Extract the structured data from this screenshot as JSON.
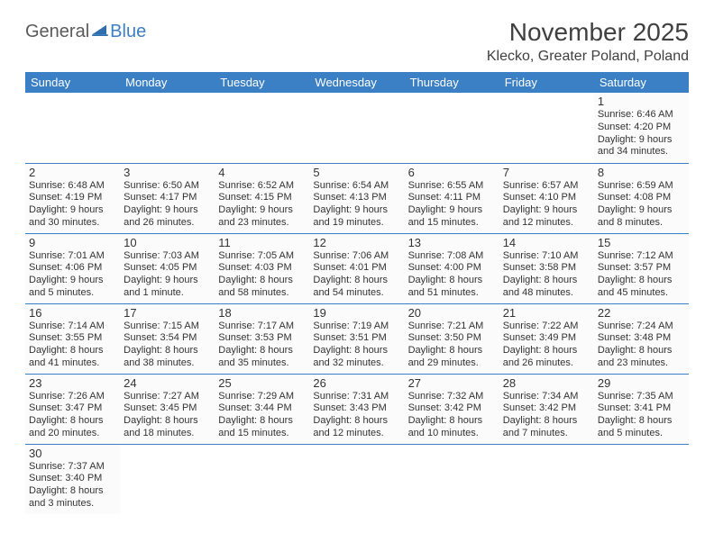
{
  "logo": {
    "part1": "General",
    "part2": "Blue"
  },
  "title": "November 2025",
  "location": "Klecko, Greater Poland, Poland",
  "colors": {
    "header_bg": "#3b7fc4",
    "header_text": "#ffffff",
    "border": "#3b7fc4",
    "cell_bg": "#fbfbfb",
    "text": "#333333",
    "logo_gray": "#5a5a5a",
    "logo_blue": "#3b7fc4"
  },
  "weekdays": [
    "Sunday",
    "Monday",
    "Tuesday",
    "Wednesday",
    "Thursday",
    "Friday",
    "Saturday"
  ],
  "weeks": [
    [
      null,
      null,
      null,
      null,
      null,
      null,
      {
        "day": "1",
        "sunrise": "Sunrise: 6:46 AM",
        "sunset": "Sunset: 4:20 PM",
        "daylight1": "Daylight: 9 hours",
        "daylight2": "and 34 minutes."
      }
    ],
    [
      {
        "day": "2",
        "sunrise": "Sunrise: 6:48 AM",
        "sunset": "Sunset: 4:19 PM",
        "daylight1": "Daylight: 9 hours",
        "daylight2": "and 30 minutes."
      },
      {
        "day": "3",
        "sunrise": "Sunrise: 6:50 AM",
        "sunset": "Sunset: 4:17 PM",
        "daylight1": "Daylight: 9 hours",
        "daylight2": "and 26 minutes."
      },
      {
        "day": "4",
        "sunrise": "Sunrise: 6:52 AM",
        "sunset": "Sunset: 4:15 PM",
        "daylight1": "Daylight: 9 hours",
        "daylight2": "and 23 minutes."
      },
      {
        "day": "5",
        "sunrise": "Sunrise: 6:54 AM",
        "sunset": "Sunset: 4:13 PM",
        "daylight1": "Daylight: 9 hours",
        "daylight2": "and 19 minutes."
      },
      {
        "day": "6",
        "sunrise": "Sunrise: 6:55 AM",
        "sunset": "Sunset: 4:11 PM",
        "daylight1": "Daylight: 9 hours",
        "daylight2": "and 15 minutes."
      },
      {
        "day": "7",
        "sunrise": "Sunrise: 6:57 AM",
        "sunset": "Sunset: 4:10 PM",
        "daylight1": "Daylight: 9 hours",
        "daylight2": "and 12 minutes."
      },
      {
        "day": "8",
        "sunrise": "Sunrise: 6:59 AM",
        "sunset": "Sunset: 4:08 PM",
        "daylight1": "Daylight: 9 hours",
        "daylight2": "and 8 minutes."
      }
    ],
    [
      {
        "day": "9",
        "sunrise": "Sunrise: 7:01 AM",
        "sunset": "Sunset: 4:06 PM",
        "daylight1": "Daylight: 9 hours",
        "daylight2": "and 5 minutes."
      },
      {
        "day": "10",
        "sunrise": "Sunrise: 7:03 AM",
        "sunset": "Sunset: 4:05 PM",
        "daylight1": "Daylight: 9 hours",
        "daylight2": "and 1 minute."
      },
      {
        "day": "11",
        "sunrise": "Sunrise: 7:05 AM",
        "sunset": "Sunset: 4:03 PM",
        "daylight1": "Daylight: 8 hours",
        "daylight2": "and 58 minutes."
      },
      {
        "day": "12",
        "sunrise": "Sunrise: 7:06 AM",
        "sunset": "Sunset: 4:01 PM",
        "daylight1": "Daylight: 8 hours",
        "daylight2": "and 54 minutes."
      },
      {
        "day": "13",
        "sunrise": "Sunrise: 7:08 AM",
        "sunset": "Sunset: 4:00 PM",
        "daylight1": "Daylight: 8 hours",
        "daylight2": "and 51 minutes."
      },
      {
        "day": "14",
        "sunrise": "Sunrise: 7:10 AM",
        "sunset": "Sunset: 3:58 PM",
        "daylight1": "Daylight: 8 hours",
        "daylight2": "and 48 minutes."
      },
      {
        "day": "15",
        "sunrise": "Sunrise: 7:12 AM",
        "sunset": "Sunset: 3:57 PM",
        "daylight1": "Daylight: 8 hours",
        "daylight2": "and 45 minutes."
      }
    ],
    [
      {
        "day": "16",
        "sunrise": "Sunrise: 7:14 AM",
        "sunset": "Sunset: 3:55 PM",
        "daylight1": "Daylight: 8 hours",
        "daylight2": "and 41 minutes."
      },
      {
        "day": "17",
        "sunrise": "Sunrise: 7:15 AM",
        "sunset": "Sunset: 3:54 PM",
        "daylight1": "Daylight: 8 hours",
        "daylight2": "and 38 minutes."
      },
      {
        "day": "18",
        "sunrise": "Sunrise: 7:17 AM",
        "sunset": "Sunset: 3:53 PM",
        "daylight1": "Daylight: 8 hours",
        "daylight2": "and 35 minutes."
      },
      {
        "day": "19",
        "sunrise": "Sunrise: 7:19 AM",
        "sunset": "Sunset: 3:51 PM",
        "daylight1": "Daylight: 8 hours",
        "daylight2": "and 32 minutes."
      },
      {
        "day": "20",
        "sunrise": "Sunrise: 7:21 AM",
        "sunset": "Sunset: 3:50 PM",
        "daylight1": "Daylight: 8 hours",
        "daylight2": "and 29 minutes."
      },
      {
        "day": "21",
        "sunrise": "Sunrise: 7:22 AM",
        "sunset": "Sunset: 3:49 PM",
        "daylight1": "Daylight: 8 hours",
        "daylight2": "and 26 minutes."
      },
      {
        "day": "22",
        "sunrise": "Sunrise: 7:24 AM",
        "sunset": "Sunset: 3:48 PM",
        "daylight1": "Daylight: 8 hours",
        "daylight2": "and 23 minutes."
      }
    ],
    [
      {
        "day": "23",
        "sunrise": "Sunrise: 7:26 AM",
        "sunset": "Sunset: 3:47 PM",
        "daylight1": "Daylight: 8 hours",
        "daylight2": "and 20 minutes."
      },
      {
        "day": "24",
        "sunrise": "Sunrise: 7:27 AM",
        "sunset": "Sunset: 3:45 PM",
        "daylight1": "Daylight: 8 hours",
        "daylight2": "and 18 minutes."
      },
      {
        "day": "25",
        "sunrise": "Sunrise: 7:29 AM",
        "sunset": "Sunset: 3:44 PM",
        "daylight1": "Daylight: 8 hours",
        "daylight2": "and 15 minutes."
      },
      {
        "day": "26",
        "sunrise": "Sunrise: 7:31 AM",
        "sunset": "Sunset: 3:43 PM",
        "daylight1": "Daylight: 8 hours",
        "daylight2": "and 12 minutes."
      },
      {
        "day": "27",
        "sunrise": "Sunrise: 7:32 AM",
        "sunset": "Sunset: 3:42 PM",
        "daylight1": "Daylight: 8 hours",
        "daylight2": "and 10 minutes."
      },
      {
        "day": "28",
        "sunrise": "Sunrise: 7:34 AM",
        "sunset": "Sunset: 3:42 PM",
        "daylight1": "Daylight: 8 hours",
        "daylight2": "and 7 minutes."
      },
      {
        "day": "29",
        "sunrise": "Sunrise: 7:35 AM",
        "sunset": "Sunset: 3:41 PM",
        "daylight1": "Daylight: 8 hours",
        "daylight2": "and 5 minutes."
      }
    ],
    [
      {
        "day": "30",
        "sunrise": "Sunrise: 7:37 AM",
        "sunset": "Sunset: 3:40 PM",
        "daylight1": "Daylight: 8 hours",
        "daylight2": "and 3 minutes."
      },
      null,
      null,
      null,
      null,
      null,
      null
    ]
  ]
}
